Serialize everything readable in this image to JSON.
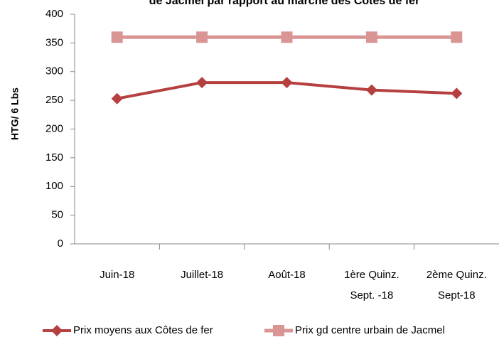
{
  "chart_data": {
    "type": "line",
    "title": "de Jacmel par rapport au marché des Côtes de fer",
    "y_label": "HTG/ 6 Lbs",
    "categories": [
      [
        "Juin-18"
      ],
      [
        "Juillet-18"
      ],
      [
        "Août-18"
      ],
      [
        "1ère  Quinz.",
        "Sept. -18"
      ],
      [
        "2ème  Quinz.",
        "Sept-18"
      ]
    ],
    "series": [
      {
        "name": "Prix moyens aux Côtes de fer",
        "color": "#b5403f",
        "marker": "diamond",
        "values": [
          253,
          281,
          281,
          268,
          262
        ]
      },
      {
        "name": "Prix gd centre urbain de Jacmel",
        "color": "#d99594",
        "marker": "square",
        "values": [
          360,
          360,
          360,
          360,
          360
        ]
      }
    ],
    "ylim": [
      0,
      400
    ],
    "yticks": [
      0,
      50,
      100,
      150,
      200,
      250,
      300,
      350,
      400
    ],
    "grid": false,
    "legend": "bottom"
  }
}
